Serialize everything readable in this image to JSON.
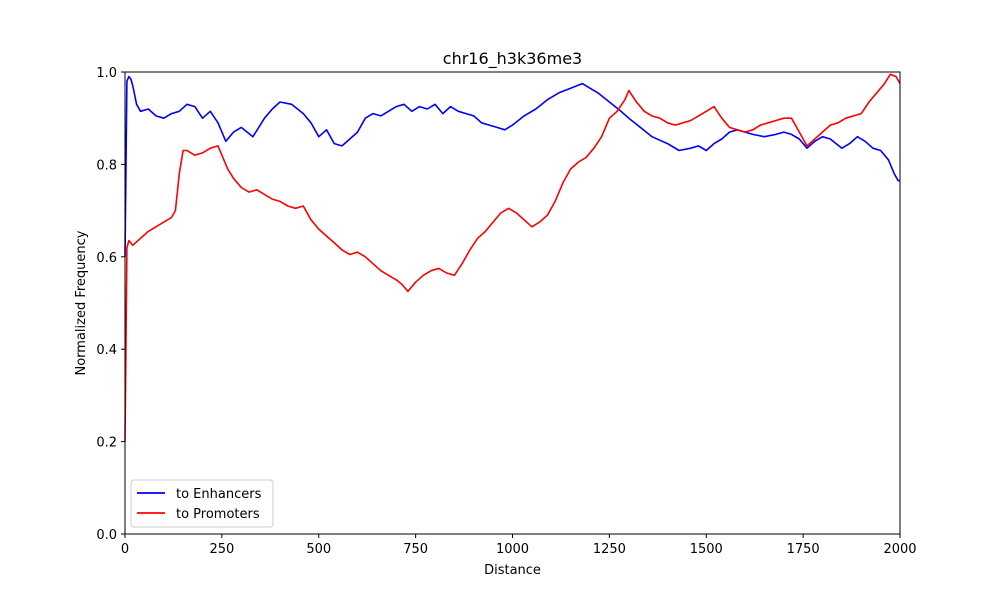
{
  "chart_data": {
    "type": "line",
    "title": "chr16_h3k36me3",
    "xlabel": "Distance",
    "ylabel": "Normalized Frequency",
    "xlim": [
      0,
      2000
    ],
    "ylim": [
      0.0,
      1.0
    ],
    "xticks": [
      "0",
      "250",
      "500",
      "750",
      "1000",
      "1250",
      "1500",
      "1750",
      "2000"
    ],
    "yticks": [
      "0.0",
      "0.2",
      "0.4",
      "0.6",
      "0.8",
      "1.0"
    ],
    "grid": false,
    "legend_position": "lower-left",
    "series": [
      {
        "name": "to Enhancers",
        "color": "#0000ff",
        "points": [
          [
            0,
            0.6
          ],
          [
            5,
            0.98
          ],
          [
            10,
            0.99
          ],
          [
            15,
            0.985
          ],
          [
            20,
            0.97
          ],
          [
            30,
            0.93
          ],
          [
            40,
            0.915
          ],
          [
            60,
            0.92
          ],
          [
            80,
            0.905
          ],
          [
            100,
            0.9
          ],
          [
            120,
            0.91
          ],
          [
            140,
            0.915
          ],
          [
            160,
            0.93
          ],
          [
            180,
            0.925
          ],
          [
            200,
            0.9
          ],
          [
            220,
            0.915
          ],
          [
            240,
            0.89
          ],
          [
            260,
            0.85
          ],
          [
            280,
            0.87
          ],
          [
            300,
            0.88
          ],
          [
            330,
            0.86
          ],
          [
            360,
            0.9
          ],
          [
            380,
            0.92
          ],
          [
            400,
            0.935
          ],
          [
            430,
            0.93
          ],
          [
            460,
            0.91
          ],
          [
            480,
            0.89
          ],
          [
            500,
            0.86
          ],
          [
            520,
            0.875
          ],
          [
            540,
            0.845
          ],
          [
            560,
            0.84
          ],
          [
            580,
            0.855
          ],
          [
            600,
            0.87
          ],
          [
            620,
            0.9
          ],
          [
            640,
            0.91
          ],
          [
            660,
            0.905
          ],
          [
            680,
            0.915
          ],
          [
            700,
            0.925
          ],
          [
            720,
            0.93
          ],
          [
            740,
            0.915
          ],
          [
            760,
            0.925
          ],
          [
            780,
            0.92
          ],
          [
            800,
            0.93
          ],
          [
            820,
            0.91
          ],
          [
            840,
            0.925
          ],
          [
            860,
            0.915
          ],
          [
            880,
            0.91
          ],
          [
            900,
            0.905
          ],
          [
            920,
            0.89
          ],
          [
            940,
            0.885
          ],
          [
            960,
            0.88
          ],
          [
            980,
            0.875
          ],
          [
            1000,
            0.885
          ],
          [
            1030,
            0.905
          ],
          [
            1060,
            0.92
          ],
          [
            1090,
            0.94
          ],
          [
            1120,
            0.955
          ],
          [
            1150,
            0.965
          ],
          [
            1180,
            0.975
          ],
          [
            1200,
            0.965
          ],
          [
            1220,
            0.955
          ],
          [
            1250,
            0.935
          ],
          [
            1280,
            0.915
          ],
          [
            1300,
            0.9
          ],
          [
            1330,
            0.88
          ],
          [
            1360,
            0.86
          ],
          [
            1400,
            0.845
          ],
          [
            1430,
            0.83
          ],
          [
            1460,
            0.835
          ],
          [
            1480,
            0.84
          ],
          [
            1500,
            0.83
          ],
          [
            1520,
            0.845
          ],
          [
            1540,
            0.855
          ],
          [
            1560,
            0.87
          ],
          [
            1580,
            0.875
          ],
          [
            1600,
            0.87
          ],
          [
            1620,
            0.865
          ],
          [
            1650,
            0.86
          ],
          [
            1680,
            0.865
          ],
          [
            1700,
            0.87
          ],
          [
            1720,
            0.865
          ],
          [
            1740,
            0.855
          ],
          [
            1760,
            0.835
          ],
          [
            1780,
            0.85
          ],
          [
            1800,
            0.86
          ],
          [
            1820,
            0.855
          ],
          [
            1850,
            0.835
          ],
          [
            1870,
            0.845
          ],
          [
            1890,
            0.86
          ],
          [
            1910,
            0.85
          ],
          [
            1930,
            0.835
          ],
          [
            1950,
            0.83
          ],
          [
            1970,
            0.81
          ],
          [
            1985,
            0.78
          ],
          [
            1995,
            0.765
          ],
          [
            2000,
            0.765
          ]
        ]
      },
      {
        "name": "to Promoters",
        "color": "#ff0000",
        "points": [
          [
            0,
            0.2
          ],
          [
            5,
            0.62
          ],
          [
            10,
            0.635
          ],
          [
            20,
            0.625
          ],
          [
            40,
            0.64
          ],
          [
            60,
            0.655
          ],
          [
            80,
            0.665
          ],
          [
            100,
            0.675
          ],
          [
            120,
            0.685
          ],
          [
            130,
            0.7
          ],
          [
            140,
            0.78
          ],
          [
            150,
            0.83
          ],
          [
            160,
            0.83
          ],
          [
            180,
            0.82
          ],
          [
            200,
            0.825
          ],
          [
            220,
            0.835
          ],
          [
            240,
            0.84
          ],
          [
            250,
            0.82
          ],
          [
            265,
            0.79
          ],
          [
            280,
            0.77
          ],
          [
            300,
            0.75
          ],
          [
            320,
            0.74
          ],
          [
            340,
            0.745
          ],
          [
            360,
            0.735
          ],
          [
            380,
            0.725
          ],
          [
            400,
            0.72
          ],
          [
            420,
            0.71
          ],
          [
            440,
            0.705
          ],
          [
            460,
            0.71
          ],
          [
            480,
            0.68
          ],
          [
            500,
            0.66
          ],
          [
            520,
            0.645
          ],
          [
            540,
            0.63
          ],
          [
            560,
            0.615
          ],
          [
            580,
            0.605
          ],
          [
            600,
            0.61
          ],
          [
            620,
            0.6
          ],
          [
            640,
            0.585
          ],
          [
            660,
            0.57
          ],
          [
            680,
            0.56
          ],
          [
            700,
            0.55
          ],
          [
            715,
            0.54
          ],
          [
            730,
            0.525
          ],
          [
            750,
            0.545
          ],
          [
            770,
            0.56
          ],
          [
            790,
            0.57
          ],
          [
            810,
            0.575
          ],
          [
            830,
            0.565
          ],
          [
            850,
            0.56
          ],
          [
            870,
            0.585
          ],
          [
            890,
            0.615
          ],
          [
            910,
            0.64
          ],
          [
            930,
            0.655
          ],
          [
            950,
            0.675
          ],
          [
            970,
            0.695
          ],
          [
            990,
            0.705
          ],
          [
            1010,
            0.695
          ],
          [
            1030,
            0.68
          ],
          [
            1050,
            0.665
          ],
          [
            1070,
            0.675
          ],
          [
            1090,
            0.69
          ],
          [
            1110,
            0.72
          ],
          [
            1130,
            0.76
          ],
          [
            1150,
            0.79
          ],
          [
            1170,
            0.805
          ],
          [
            1190,
            0.815
          ],
          [
            1210,
            0.835
          ],
          [
            1230,
            0.86
          ],
          [
            1250,
            0.9
          ],
          [
            1270,
            0.915
          ],
          [
            1290,
            0.94
          ],
          [
            1300,
            0.96
          ],
          [
            1320,
            0.935
          ],
          [
            1340,
            0.915
          ],
          [
            1360,
            0.905
          ],
          [
            1380,
            0.9
          ],
          [
            1400,
            0.89
          ],
          [
            1420,
            0.885
          ],
          [
            1440,
            0.89
          ],
          [
            1460,
            0.895
          ],
          [
            1480,
            0.905
          ],
          [
            1500,
            0.915
          ],
          [
            1520,
            0.925
          ],
          [
            1540,
            0.9
          ],
          [
            1560,
            0.88
          ],
          [
            1580,
            0.875
          ],
          [
            1600,
            0.87
          ],
          [
            1620,
            0.875
          ],
          [
            1640,
            0.885
          ],
          [
            1660,
            0.89
          ],
          [
            1680,
            0.895
          ],
          [
            1700,
            0.9
          ],
          [
            1720,
            0.9
          ],
          [
            1740,
            0.87
          ],
          [
            1760,
            0.84
          ],
          [
            1780,
            0.855
          ],
          [
            1800,
            0.87
          ],
          [
            1820,
            0.885
          ],
          [
            1840,
            0.89
          ],
          [
            1860,
            0.9
          ],
          [
            1880,
            0.905
          ],
          [
            1900,
            0.91
          ],
          [
            1920,
            0.935
          ],
          [
            1940,
            0.955
          ],
          [
            1960,
            0.975
          ],
          [
            1975,
            0.995
          ],
          [
            1990,
            0.99
          ],
          [
            2000,
            0.975
          ]
        ]
      }
    ]
  }
}
